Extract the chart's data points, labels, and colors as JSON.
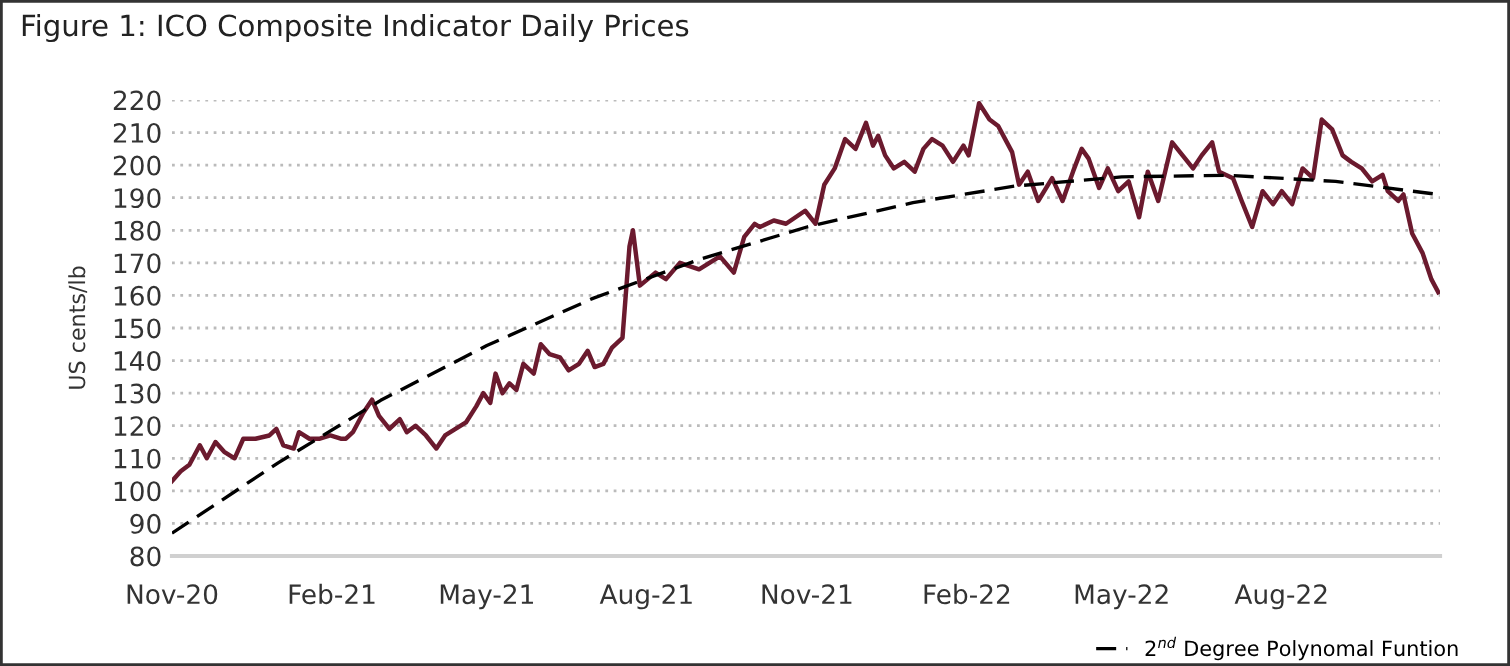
{
  "chart_data": {
    "type": "line",
    "title": "Figure 1: ICO Composite Indicator Daily Prices",
    "ylabel": "US cents/lb",
    "xlim": [
      "2020-11-01",
      "2022-10-31"
    ],
    "ylim": [
      80,
      220
    ],
    "yticks": [
      80,
      90,
      100,
      110,
      120,
      130,
      140,
      150,
      160,
      170,
      180,
      190,
      200,
      210,
      220
    ],
    "xticks": [
      {
        "value": "2020-11-01",
        "label": "Nov-20"
      },
      {
        "value": "2021-02-01",
        "label": "Feb-21"
      },
      {
        "value": "2021-05-01",
        "label": "May-21"
      },
      {
        "value": "2021-08-01",
        "label": "Aug-21"
      },
      {
        "value": "2021-11-01",
        "label": "Nov-21"
      },
      {
        "value": "2022-02-01",
        "label": "Feb-22"
      },
      {
        "value": "2022-05-01",
        "label": "May-22"
      },
      {
        "value": "2022-08-01",
        "label": "Aug-22"
      }
    ],
    "grid": "y",
    "legend": "bottom right",
    "series": [
      {
        "color": "#6b1a2e",
        "line_style": "solid",
        "x": [
          "2020-11-01",
          "2020-11-06",
          "2020-11-11",
          "2020-11-17",
          "2020-11-21",
          "2020-11-26",
          "2020-12-01",
          "2020-12-07",
          "2020-12-12",
          "2020-12-19",
          "2020-12-27",
          "2020-12-31",
          "2021-01-04",
          "2021-01-10",
          "2021-01-13",
          "2021-01-19",
          "2021-01-25",
          "2021-01-31",
          "2021-02-06",
          "2021-02-09",
          "2021-02-13",
          "2021-02-19",
          "2021-02-24",
          "2021-02-28",
          "2021-03-06",
          "2021-03-12",
          "2021-03-16",
          "2021-03-21",
          "2021-03-27",
          "2021-04-02",
          "2021-04-07",
          "2021-04-13",
          "2021-04-19",
          "2021-04-25",
          "2021-04-29",
          "2021-05-03",
          "2021-05-06",
          "2021-05-10",
          "2021-05-14",
          "2021-05-18",
          "2021-05-22",
          "2021-05-28",
          "2021-06-01",
          "2021-06-06",
          "2021-06-12",
          "2021-06-17",
          "2021-06-23",
          "2021-06-28",
          "2021-07-02",
          "2021-07-07",
          "2021-07-12",
          "2021-07-18",
          "2021-07-22",
          "2021-07-24",
          "2021-07-28",
          "2021-08-06",
          "2021-08-12",
          "2021-08-20",
          "2021-08-31",
          "2021-09-12",
          "2021-09-20",
          "2021-09-26",
          "2021-10-02",
          "2021-10-05",
          "2021-10-13",
          "2021-10-20",
          "2021-10-31",
          "2021-11-06",
          "2021-11-11",
          "2021-11-17",
          "2021-11-23",
          "2021-11-29",
          "2021-12-05",
          "2021-12-09",
          "2021-12-12",
          "2021-12-16",
          "2021-12-21",
          "2021-12-27",
          "2022-01-02",
          "2022-01-07",
          "2022-01-12",
          "2022-01-18",
          "2022-01-24",
          "2022-01-30",
          "2022-02-02",
          "2022-02-08",
          "2022-02-14",
          "2022-02-19",
          "2022-02-23",
          "2022-02-27",
          "2022-03-03",
          "2022-03-08",
          "2022-03-14",
          "2022-03-22",
          "2022-03-28",
          "2022-04-03",
          "2022-04-08",
          "2022-04-12",
          "2022-04-18",
          "2022-04-23",
          "2022-04-29",
          "2022-05-05",
          "2022-05-11",
          "2022-05-16",
          "2022-05-22",
          "2022-05-30",
          "2022-06-05",
          "2022-06-11",
          "2022-06-16",
          "2022-06-22",
          "2022-06-26",
          "2022-07-04",
          "2022-07-09",
          "2022-07-15",
          "2022-07-21",
          "2022-07-27",
          "2022-08-01",
          "2022-08-07",
          "2022-08-13",
          "2022-08-19",
          "2022-08-24",
          "2022-08-30",
          "2022-09-05",
          "2022-09-10",
          "2022-09-16",
          "2022-09-22",
          "2022-09-28",
          "2022-10-01",
          "2022-10-07",
          "2022-10-10",
          "2022-10-15",
          "2022-10-21",
          "2022-10-26",
          "2022-10-30"
        ],
        "values": [
          103,
          106,
          108,
          114,
          110,
          115,
          112,
          110,
          116,
          116,
          117,
          119,
          114,
          113,
          118,
          116,
          116,
          117,
          116,
          116,
          118,
          124,
          128,
          123,
          119,
          122,
          118,
          120,
          117,
          113,
          117,
          119,
          121,
          126,
          130,
          127,
          136,
          130,
          133,
          131,
          139,
          136,
          145,
          142,
          141,
          137,
          139,
          143,
          138,
          139,
          144,
          147,
          175,
          180,
          163,
          167,
          165,
          170,
          168,
          172,
          167,
          178,
          182,
          181,
          183,
          182,
          186,
          182,
          194,
          199,
          208,
          205,
          213,
          206,
          209,
          203,
          199,
          201,
          198,
          205,
          208,
          206,
          201,
          206,
          203,
          219,
          214,
          212,
          208,
          204,
          194,
          198,
          189,
          196,
          189,
          198,
          205,
          202,
          193,
          199,
          192,
          195,
          184,
          198,
          189,
          207,
          203,
          199,
          203,
          207,
          198,
          196,
          189,
          181,
          192,
          188,
          192,
          188,
          199,
          196,
          214,
          211,
          203,
          201,
          199,
          195,
          197,
          192,
          189,
          191,
          179,
          173,
          165,
          161
        ]
      },
      {
        "name": "2$^{nd}$ Degree Polynomal Funtion",
        "color": "#000000",
        "line_style": "dashed",
        "x": [
          "2020-11-01",
          "2021-01-01",
          "2021-03-01",
          "2021-05-01",
          "2021-07-01",
          "2021-09-01",
          "2021-11-01",
          "2022-01-01",
          "2022-03-01",
          "2022-05-01",
          "2022-07-01",
          "2022-09-01",
          "2022-10-30"
        ],
        "values": [
          87,
          108.6,
          127.8,
          144.6,
          159.1,
          171.2,
          181,
          188.5,
          193.6,
          196.4,
          196.9,
          195,
          191
        ]
      }
    ]
  }
}
